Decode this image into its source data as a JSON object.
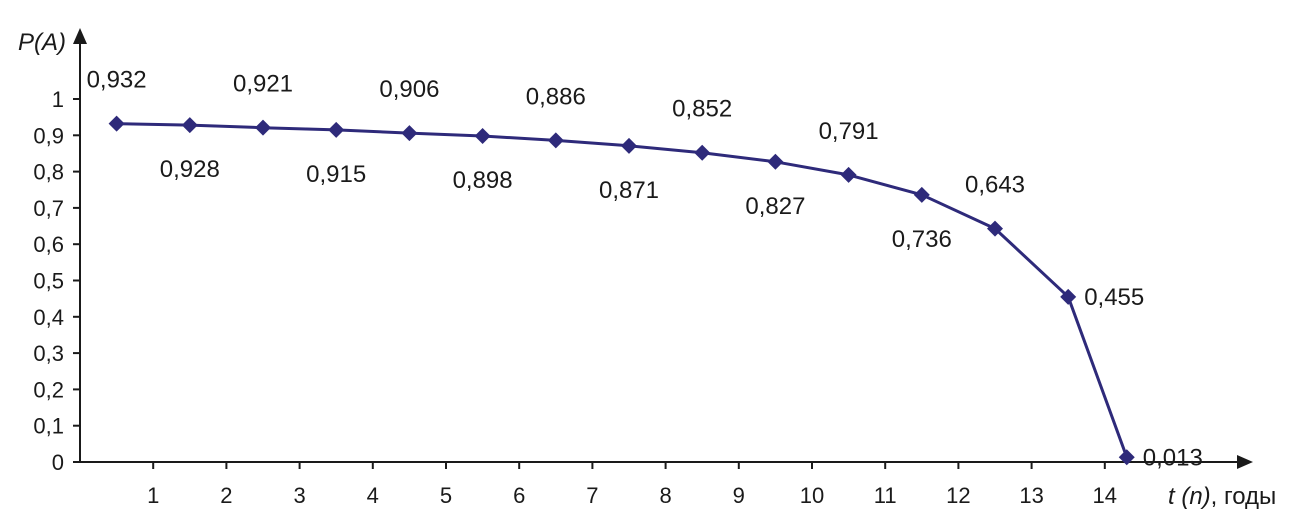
{
  "chart_data": {
    "type": "line",
    "y_axis_label": "P(A)",
    "x_axis_label_italic": "t (n)",
    "x_axis_label_rest": ", годы",
    "x": [
      0.5,
      1.5,
      2.5,
      3.5,
      4.5,
      5.5,
      6.5,
      7.5,
      8.5,
      9.5,
      10.5,
      11.5,
      12.5,
      13.5,
      14.3
    ],
    "values": [
      0.932,
      0.928,
      0.921,
      0.915,
      0.906,
      0.898,
      0.886,
      0.871,
      0.852,
      0.827,
      0.791,
      0.736,
      0.643,
      0.455,
      0.013
    ],
    "value_labels": [
      "0,932",
      "0,928",
      "0,921",
      "0,915",
      "0,906",
      "0,898",
      "0,886",
      "0,871",
      "0,852",
      "0,827",
      "0,791",
      "0,736",
      "0,643",
      "0,455",
      "0,013"
    ],
    "label_positions": [
      "above",
      "below",
      "above",
      "below",
      "above",
      "below",
      "above",
      "below",
      "above",
      "below",
      "above",
      "below",
      "above",
      "right",
      "right"
    ],
    "x_ticks": [
      "1",
      "2",
      "3",
      "4",
      "5",
      "6",
      "7",
      "8",
      "9",
      "10",
      "11",
      "12",
      "13",
      "14"
    ],
    "y_ticks": [
      "0",
      "0,1",
      "0,2",
      "0,3",
      "0,4",
      "0,5",
      "0,6",
      "0,7",
      "0,8",
      "0,9",
      "1"
    ],
    "xlim": [
      0,
      16
    ],
    "ylim": [
      0,
      1
    ],
    "grid": false,
    "legend": "none",
    "line_color": "#2e2a7a",
    "marker": "diamond",
    "axis_color": "#1a1a1a"
  }
}
